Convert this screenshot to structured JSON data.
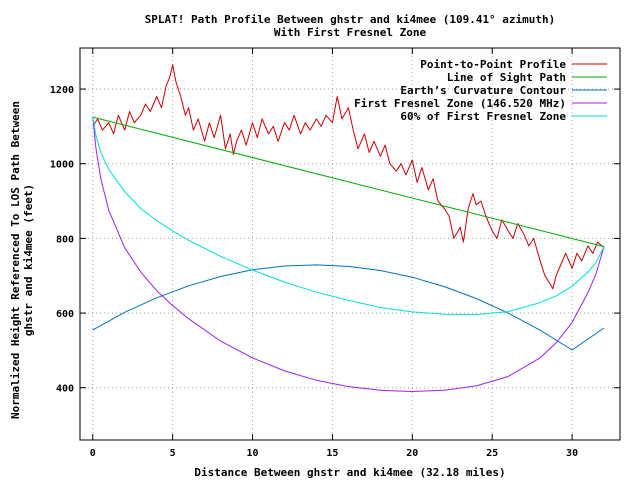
{
  "chart_data": {
    "type": "line",
    "title_line1": "SPLAT! Path Profile Between ghstr and ki4mee (109.41° azimuth)",
    "title_line2": "With First Fresnel Zone",
    "xlabel": "Distance Between ghstr and ki4mee (32.18 miles)",
    "ylabel_line1": "Normalized Height Referenced To LOS Path Between",
    "ylabel_line2": "ghstr and ki4mee (feet)",
    "xlim": [
      -0.8,
      33
    ],
    "ylim": [
      260,
      1310
    ],
    "xticks": [
      0,
      5,
      10,
      15,
      20,
      25,
      30
    ],
    "yticks": [
      400,
      600,
      800,
      1000,
      1200
    ],
    "grid": true,
    "legend_position": "top-right",
    "series": [
      {
        "name": "Point-to-Point Profile",
        "color": "#cc0000",
        "x": [
          0,
          0.3,
          0.6,
          1.0,
          1.3,
          1.6,
          2.0,
          2.3,
          2.6,
          3.0,
          3.3,
          3.6,
          4.0,
          4.3,
          4.6,
          4.8,
          5.0,
          5.2,
          5.5,
          5.8,
          6.0,
          6.3,
          6.6,
          7.0,
          7.3,
          7.6,
          8.0,
          8.3,
          8.6,
          8.8,
          9.0,
          9.3,
          9.6,
          10.0,
          10.3,
          10.6,
          11.0,
          11.3,
          11.6,
          12.0,
          12.3,
          12.6,
          13.0,
          13.3,
          13.6,
          14.0,
          14.3,
          14.6,
          15.0,
          15.3,
          15.6,
          16.0,
          16.3,
          16.6,
          17.0,
          17.3,
          17.6,
          18.0,
          18.3,
          18.6,
          19.0,
          19.3,
          19.6,
          20.0,
          20.3,
          20.6,
          21.0,
          21.3,
          21.6,
          22.0,
          22.3,
          22.6,
          23.0,
          23.2,
          23.5,
          23.8,
          24.0,
          24.3,
          24.6,
          25.0,
          25.3,
          25.6,
          26.0,
          26.3,
          26.6,
          27.0,
          27.3,
          27.6,
          28.0,
          28.3,
          28.6,
          28.8,
          29.0,
          29.3,
          29.6,
          30.0,
          30.3,
          30.6,
          31.0,
          31.3,
          31.6,
          32.0
        ],
        "y": [
          1100,
          1120,
          1090,
          1110,
          1080,
          1130,
          1090,
          1140,
          1110,
          1130,
          1160,
          1140,
          1180,
          1150,
          1210,
          1230,
          1265,
          1220,
          1180,
          1130,
          1150,
          1090,
          1120,
          1060,
          1110,
          1070,
          1130,
          1040,
          1080,
          1025,
          1060,
          1090,
          1050,
          1110,
          1070,
          1120,
          1080,
          1100,
          1060,
          1110,
          1090,
          1130,
          1080,
          1110,
          1090,
          1120,
          1100,
          1130,
          1110,
          1180,
          1120,
          1150,
          1090,
          1040,
          1080,
          1030,
          1060,
          1020,
          1050,
          1000,
          980,
          1000,
          970,
          1010,
          950,
          990,
          930,
          960,
          900,
          880,
          860,
          800,
          830,
          790,
          880,
          920,
          890,
          900,
          860,
          820,
          800,
          850,
          820,
          800,
          840,
          810,
          780,
          800,
          740,
          700,
          680,
          665,
          700,
          730,
          760,
          720,
          760,
          740,
          780,
          760,
          790,
          775
        ]
      },
      {
        "name": "Line of Sight Path",
        "color": "#00aa00",
        "x": [
          0,
          32
        ],
        "y": [
          1125,
          778
        ]
      },
      {
        "name": "Earth’s Curvature Contour",
        "color": "#0070c0",
        "x": [
          0,
          2,
          4,
          6,
          8,
          10,
          12,
          14,
          16,
          18,
          20,
          22,
          24,
          26,
          28,
          30,
          32
        ],
        "y": [
          555,
          602,
          641,
          673,
          698,
          716,
          726,
          729,
          725,
          714,
          696,
          671,
          639,
          600,
          554,
          501,
          560
        ]
      },
      {
        "name": "First Fresnel Zone (146.520 MHz)",
        "color": "#a020f0",
        "x": [
          0,
          0.2,
          0.5,
          1,
          2,
          3,
          4,
          5,
          6,
          8,
          10,
          12,
          14,
          16,
          18,
          20,
          22,
          24,
          26,
          28,
          29,
          30,
          31,
          31.5,
          32
        ],
        "y": [
          1125,
          1040,
          960,
          875,
          775,
          710,
          660,
          620,
          585,
          525,
          480,
          445,
          420,
          403,
          393,
          390,
          393,
          405,
          430,
          480,
          520,
          575,
          655,
          705,
          778
        ]
      },
      {
        "name": "60% of First Fresnel Zone",
        "color": "#00dddd",
        "x": [
          0,
          0.2,
          0.5,
          1,
          2,
          3,
          4,
          5,
          6,
          8,
          10,
          12,
          14,
          16,
          18,
          20,
          22,
          24,
          26,
          28,
          29,
          30,
          31,
          31.5,
          32
        ],
        "y": [
          1125,
          1075,
          1030,
          985,
          925,
          880,
          848,
          820,
          795,
          752,
          715,
          683,
          656,
          634,
          615,
          603,
          597,
          596,
          604,
          628,
          646,
          672,
          710,
          735,
          778
        ]
      }
    ]
  }
}
